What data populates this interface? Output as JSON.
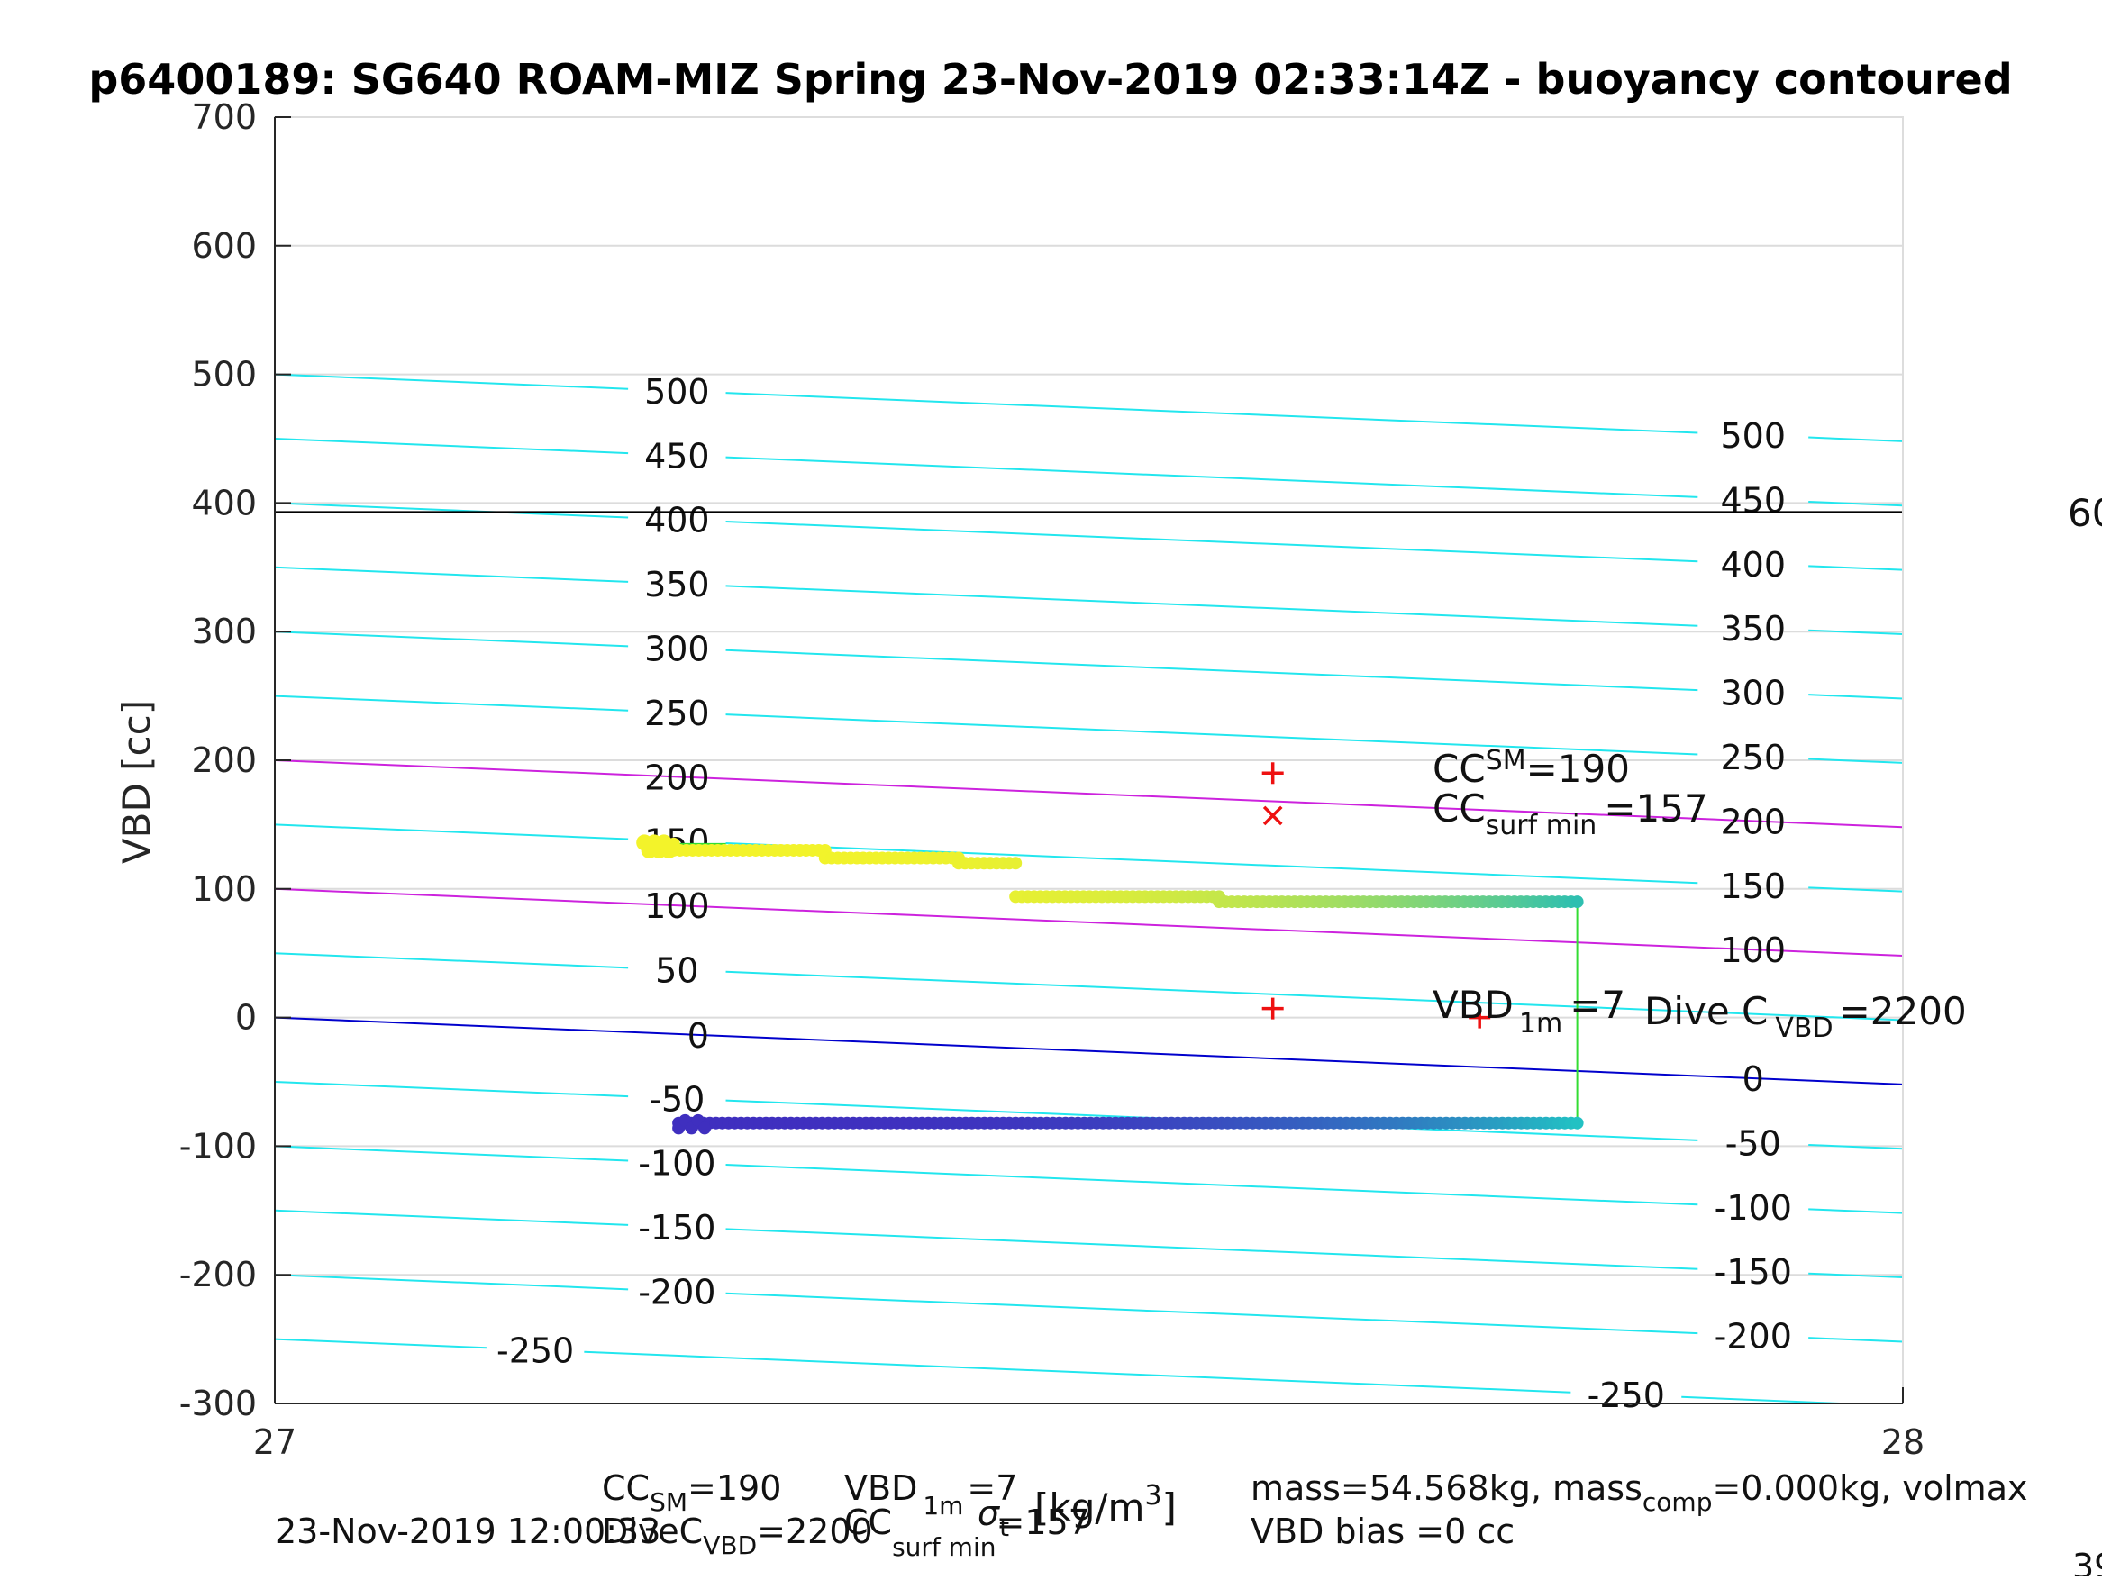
{
  "chart_data": {
    "type": "scatter",
    "title": "p6400189: SG640 ROAM-MIZ Spring 23-Nov-2019 02:33:14Z - buoyancy contoured",
    "xlabel": "",
    "ylabel": "VBD [cc]",
    "xlim": [
      27,
      28
    ],
    "ylim": [
      -300,
      700
    ],
    "x_ticks": [
      "27",
      "28"
    ],
    "y_ticks": [
      "-300",
      "-200",
      "-100",
      "0",
      "100",
      "200",
      "300",
      "400",
      "500",
      "600",
      "700"
    ],
    "grid": true,
    "contours": {
      "levels": [
        -250,
        -200,
        -150,
        -100,
        -50,
        0,
        50,
        100,
        150,
        200,
        250,
        300,
        350,
        400,
        450,
        500
      ],
      "left_labels": [
        "-250",
        "-200",
        "-150",
        "-100",
        "-50",
        "0",
        "50",
        "100",
        "150",
        "200",
        "250",
        "300",
        "350",
        "400",
        "450",
        "500"
      ],
      "right_labels": [
        "-250",
        "-200",
        "-150",
        "-100",
        "-50",
        "0",
        "100",
        "150",
        "200",
        "250",
        "300",
        "350",
        "400",
        "450",
        "500"
      ],
      "highlight": [
        {
          "level": 0,
          "color": "#0000cc"
        },
        {
          "level": 100,
          "color": "#cc22dd"
        },
        {
          "level": 200,
          "color": "#cc22dd"
        }
      ],
      "color": "#22e6ee"
    },
    "reference_line": {
      "y": 393,
      "color": "#000000"
    },
    "series": [
      {
        "role": "upper-segments",
        "color_start": "#f3f32a",
        "color_end": "#2ebfb0",
        "segments": [
          {
            "x0": 27.227,
            "x1": 27.245,
            "y": 135
          },
          {
            "x0": 27.245,
            "x1": 27.338,
            "y": 130
          },
          {
            "x0": 27.338,
            "x1": 27.42,
            "y": 124
          },
          {
            "x0": 27.42,
            "x1": 27.455,
            "y": 120
          },
          {
            "x0": 27.455,
            "x1": 27.58,
            "y": 94
          },
          {
            "x0": 27.58,
            "x1": 27.8,
            "y": 90
          }
        ]
      },
      {
        "role": "lower-segment",
        "color_start": "#3f2fbf",
        "color_end": "#22c1c3",
        "segments": [
          {
            "x0": 27.248,
            "x1": 27.8,
            "y": -82
          }
        ]
      }
    ],
    "connector": {
      "x": 27.8,
      "y_top": 90,
      "y_bottom": -82,
      "color": "#33dd33"
    },
    "markers": [
      {
        "x": 27.613,
        "y": 190,
        "symbol": "plus",
        "color": "#ee1111"
      },
      {
        "x": 27.613,
        "y": 157,
        "symbol": "cross",
        "color": "#ee1111"
      },
      {
        "x": 27.613,
        "y": 7,
        "symbol": "plus",
        "color": "#ee1111"
      },
      {
        "x": 27.74,
        "y": 0,
        "symbol": "plus",
        "color": "#ee1111"
      }
    ],
    "annotations": {
      "cc_sm": {
        "base": "CC",
        "sub": "SM",
        "rest": "=190"
      },
      "cc_surf": {
        "base": "CC",
        "sub": "surf min",
        "rest": "=157"
      },
      "vbd_1m": {
        "base": "VBD",
        "sub": "1m",
        "rest": "=7"
      },
      "dive_c": {
        "base": "Dive C",
        "sub": "VBD",
        "rest": "=2200"
      },
      "dive_c_overlap": "60"
    },
    "footer": {
      "line1_left": {
        "base": "CC",
        "sub": "SM",
        "rest": "=190"
      },
      "line1_vbd": {
        "base": "VBD",
        "sub": "1m",
        "rest": "=7"
      },
      "xunit": "[kg/m",
      "xunit_sup": "3",
      "xunit_close": "]",
      "sigma": "σ",
      "sigma_sub": "t",
      "line1_right": "mass=54.568kg, mass",
      "line1_right_sub": "comp",
      "line1_right_rest": "=0.000kg, volmax",
      "line2_date": "23-Nov-2019 12:00:33",
      "line2_dive": {
        "base": "DiveC",
        "sub": "VBD",
        "rest": "=2200"
      },
      "line2_surf": {
        "base": "CC",
        "sub": "surf min",
        "rest": "=157"
      },
      "line2_right": "VBD bias =0 cc",
      "corner": "39"
    }
  }
}
